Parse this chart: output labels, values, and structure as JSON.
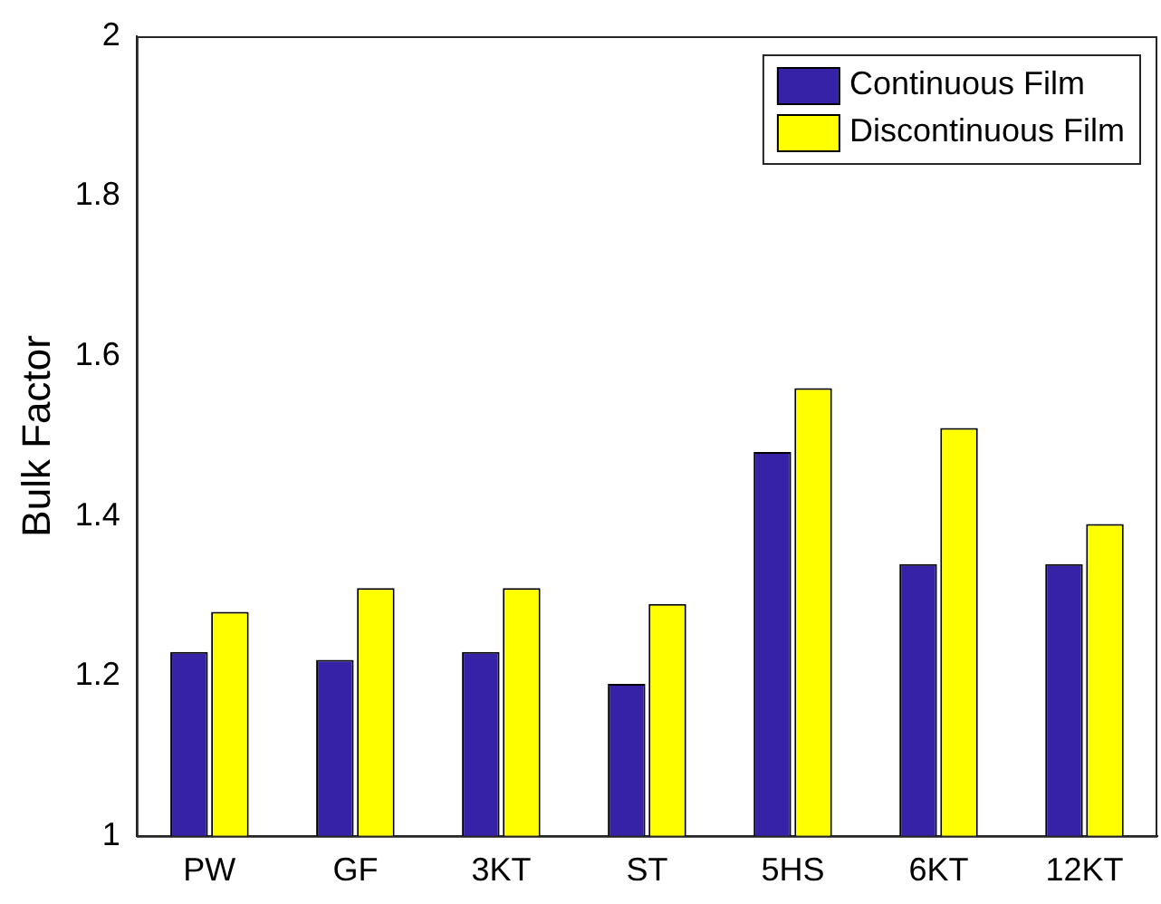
{
  "chart_data": {
    "type": "bar",
    "ylabel": "Bulk Factor",
    "categories": [
      "PW",
      "GF",
      "3KT",
      "ST",
      "5HS",
      "6KT",
      "12KT"
    ],
    "series": [
      {
        "name": "Continuous Film",
        "color": "#3522a6",
        "values": [
          1.23,
          1.22,
          1.23,
          1.19,
          1.48,
          1.34,
          1.34
        ]
      },
      {
        "name": "Discontinuous Film",
        "color": "#ffff00",
        "values": [
          1.28,
          1.31,
          1.31,
          1.29,
          1.56,
          1.51,
          1.39
        ]
      }
    ],
    "ylim": [
      1,
      2
    ],
    "yticks": [
      1,
      1.2,
      1.4,
      1.6,
      1.8,
      2
    ],
    "grid": false,
    "legend": "top right"
  }
}
